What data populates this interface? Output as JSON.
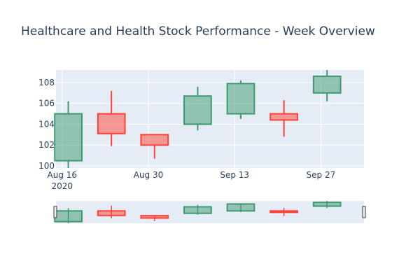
{
  "chart_data": {
    "type": "candlestick",
    "title": "Healthcare and Health Stock Performance - Week Overview",
    "xlabel": "",
    "ylabel": "",
    "x_tick_labels": [
      {
        "date": "2020-08-16",
        "label": "Aug 16",
        "sublabel": "2020"
      },
      {
        "date": "2020-08-30",
        "label": "Aug 30"
      },
      {
        "date": "2020-09-13",
        "label": "Sep 13"
      },
      {
        "date": "2020-09-27",
        "label": "Sep 27"
      }
    ],
    "y_ticks": [
      100,
      102,
      104,
      106,
      108
    ],
    "x_range": [
      "2020-08-15",
      "2020-10-04"
    ],
    "y_range": [
      99.8,
      109.2
    ],
    "grid": true,
    "rangeslider": true,
    "increasing_color": "#3d9970",
    "decreasing_color": "#ff4136",
    "candles": [
      {
        "date": "2020-08-17",
        "open": 100.5,
        "high": 106.2,
        "low": 99.8,
        "close": 105.0
      },
      {
        "date": "2020-08-24",
        "open": 105.0,
        "high": 107.2,
        "low": 101.9,
        "close": 103.1
      },
      {
        "date": "2020-08-31",
        "open": 103.0,
        "high": 103.0,
        "low": 100.7,
        "close": 102.0
      },
      {
        "date": "2020-09-07",
        "open": 104.0,
        "high": 107.6,
        "low": 103.4,
        "close": 106.7
      },
      {
        "date": "2020-09-14",
        "open": 105.0,
        "high": 108.2,
        "low": 104.5,
        "close": 107.9
      },
      {
        "date": "2020-09-21",
        "open": 105.0,
        "high": 106.3,
        "low": 102.8,
        "close": 104.4
      },
      {
        "date": "2020-09-28",
        "open": 107.0,
        "high": 109.2,
        "low": 106.2,
        "close": 108.6
      }
    ]
  }
}
